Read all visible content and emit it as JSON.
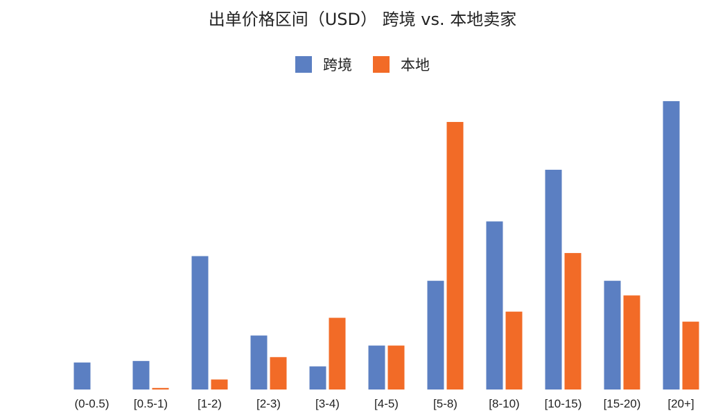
{
  "chart_data": {
    "type": "bar",
    "title": "出单价格区间（USD） 跨境 vs. 本地卖家",
    "xlabel": "",
    "ylabel": "",
    "categories": [
      "(0-0.5)",
      "[0.5-1)",
      "[1-2)",
      "[2-3)",
      "[3-4)",
      "[4-5)",
      "[5-8)",
      "[8-10)",
      "[10-15)",
      "[15-20)",
      "[20+]"
    ],
    "series": [
      {
        "name": "跨境",
        "color": "#5B7FC2",
        "values": [
          3.5,
          3.7,
          17.3,
          7.0,
          3.0,
          5.7,
          14.1,
          21.8,
          28.5,
          14.1,
          37.4
        ]
      },
      {
        "name": "本地",
        "color": "#F26B27",
        "values": [
          0,
          0.2,
          1.3,
          4.2,
          9.3,
          5.7,
          34.7,
          10.1,
          17.7,
          12.2,
          8.8
        ]
      }
    ],
    "ylim": [
      0,
      40
    ],
    "grid": false,
    "legend_position": "top"
  }
}
